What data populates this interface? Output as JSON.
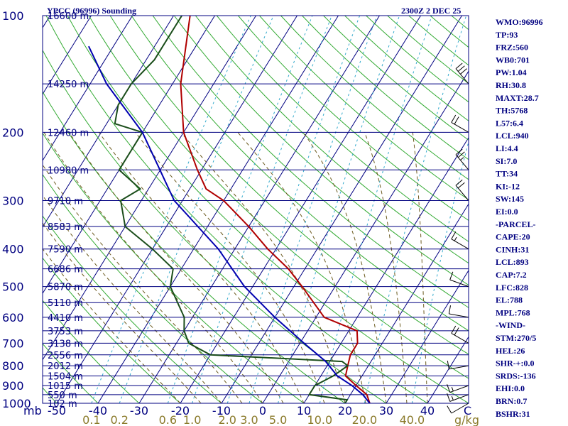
{
  "header": {
    "station": "YPCC (96996) Sounding",
    "time": "2300Z  2 DEC 25"
  },
  "chart_data": {
    "type": "skew-t",
    "y_axis": {
      "ticks": [
        "100",
        "200",
        "300",
        "400",
        "500",
        "600",
        "700",
        "800",
        "900",
        "1000"
      ],
      "unit_label": "mb"
    },
    "x_axis": {
      "ticks": [
        "-50",
        "-40",
        "-30",
        "-20",
        "-10",
        "0",
        "10",
        "20",
        "30",
        "40"
      ],
      "unit_label": "C"
    },
    "mixing_ratio_ticks": [
      "0.1",
      "0.2",
      "0.6",
      "1.0",
      "2.0",
      "3.0",
      "5.0",
      "10.0",
      "20.0",
      "40.0"
    ],
    "mixing_ratio_unit": "g/kg",
    "heights": [
      {
        "p": 100,
        "label": "16600 m"
      },
      {
        "p": 150,
        "label": "14250 m"
      },
      {
        "p": 200,
        "label": "12460 m"
      },
      {
        "p": 250,
        "label": "10980 m"
      },
      {
        "p": 300,
        "label": "9710 m"
      },
      {
        "p": 350,
        "label": "8583 m"
      },
      {
        "p": 400,
        "label": "7590 m"
      },
      {
        "p": 450,
        "label": "6686 m"
      },
      {
        "p": 500,
        "label": "5870 m"
      },
      {
        "p": 550,
        "label": "5110 m"
      },
      {
        "p": 600,
        "label": "4410 m"
      },
      {
        "p": 650,
        "label": "3753 m"
      },
      {
        "p": 700,
        "label": "3138 m"
      },
      {
        "p": 750,
        "label": "2556 m"
      },
      {
        "p": 800,
        "label": "2012 m"
      },
      {
        "p": 850,
        "label": "1504 m"
      },
      {
        "p": 900,
        "label": "1015 m"
      },
      {
        "p": 950,
        "label": "550 m"
      },
      {
        "p": 1000,
        "label": "102 m"
      }
    ],
    "series": [
      {
        "color": "#b00000",
        "points": [
          [
            100,
            -76
          ],
          [
            150,
            -68
          ],
          [
            200,
            -60
          ],
          [
            250,
            -51
          ],
          [
            280,
            -46
          ],
          [
            300,
            -40
          ],
          [
            350,
            -30
          ],
          [
            400,
            -22
          ],
          [
            450,
            -14
          ],
          [
            500,
            -8
          ],
          [
            600,
            2
          ],
          [
            650,
            12
          ],
          [
            700,
            14
          ],
          [
            750,
            14
          ],
          [
            800,
            15
          ],
          [
            850,
            16
          ],
          [
            900,
            20
          ],
          [
            950,
            24
          ],
          [
            1000,
            26
          ]
        ]
      },
      {
        "color": "#1a4d1a",
        "points": [
          [
            100,
            -78
          ],
          [
            130,
            -78
          ],
          [
            150,
            -80
          ],
          [
            170,
            -80
          ],
          [
            190,
            -78
          ],
          [
            200,
            -70
          ],
          [
            250,
            -70
          ],
          [
            280,
            -62
          ],
          [
            300,
            -65
          ],
          [
            350,
            -60
          ],
          [
            400,
            -50
          ],
          [
            450,
            -42
          ],
          [
            500,
            -40
          ],
          [
            600,
            -32
          ],
          [
            650,
            -30
          ],
          [
            700,
            -27
          ],
          [
            750,
            -20
          ],
          [
            780,
            13
          ],
          [
            800,
            15
          ],
          [
            850,
            13
          ],
          [
            900,
            10
          ],
          [
            950,
            10
          ],
          [
            980,
            20
          ],
          [
            1000,
            20
          ]
        ]
      },
      {
        "color": "#0000b0",
        "points": [
          [
            120,
            -96
          ],
          [
            150,
            -86
          ],
          [
            200,
            -70
          ],
          [
            300,
            -52
          ],
          [
            400,
            -34
          ],
          [
            500,
            -22
          ],
          [
            600,
            -10
          ],
          [
            700,
            1
          ],
          [
            780,
            9
          ],
          [
            850,
            14
          ],
          [
            900,
            19
          ],
          [
            950,
            23
          ],
          [
            1000,
            26
          ]
        ]
      }
    ],
    "winds": [
      {
        "p": 150,
        "spd": 30,
        "dir": 320
      },
      {
        "p": 200,
        "spd": 20,
        "dir": 300
      },
      {
        "p": 250,
        "spd": 25,
        "dir": 320
      },
      {
        "p": 300,
        "spd": 20,
        "dir": 320
      },
      {
        "p": 400,
        "spd": 15,
        "dir": 300
      },
      {
        "p": 500,
        "spd": 10,
        "dir": 290
      },
      {
        "p": 600,
        "spd": 10,
        "dir": 280
      },
      {
        "p": 700,
        "spd": 20,
        "dir": 300
      },
      {
        "p": 800,
        "spd": 10,
        "dir": 260
      },
      {
        "p": 900,
        "spd": 15,
        "dir": 250
      },
      {
        "p": 950,
        "spd": 15,
        "dir": 250
      },
      {
        "p": 1000,
        "spd": 10,
        "dir": 240
      }
    ]
  },
  "indices": [
    "WMO:96996",
    "TP:93",
    "FRZ:560",
    "WB0:701",
    "PW:1.04",
    "RH:30.8",
    "MAXT:28.7",
    "TH:5768",
    "L57:6.4",
    "LCL:940",
    "LI:4.4",
    "SI:7.0",
    "TT:34",
    "KI:-12",
    "SW:145",
    "EI:0.0",
    "-PARCEL-",
    "CAPE:20",
    "CINH:31",
    "LCL:893",
    "CAP:7.2",
    "LFC:828",
    "EL:788",
    "MPL:768",
    "-WIND-",
    "STM:270/5",
    "HEL:26",
    "SHR-+:0.0",
    "SRDS:-136",
    "EHI:0.0",
    "BRN:0.7",
    "BSHR:31"
  ]
}
